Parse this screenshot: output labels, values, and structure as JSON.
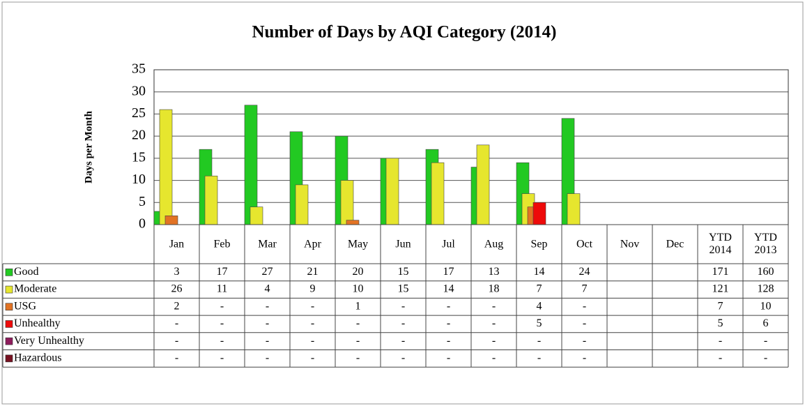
{
  "chart_data": {
    "type": "bar",
    "title": "Number of Days by AQI Category (2014)",
    "y_label": "Days per Month",
    "categories": [
      "Jan",
      "Feb",
      "Mar",
      "Apr",
      "May",
      "Jun",
      "Jul",
      "Aug",
      "Sep",
      "Oct",
      "Nov",
      "Dec"
    ],
    "ylim": [
      0,
      35
    ],
    "yticks": [
      0,
      5,
      10,
      15,
      20,
      25,
      30,
      35
    ],
    "grid": true,
    "series": [
      {
        "name": "Good",
        "color": "#22c922",
        "values": [
          3,
          17,
          27,
          21,
          20,
          15,
          17,
          13,
          14,
          24,
          null,
          null
        ],
        "value_labels": [
          "3",
          "17",
          "27",
          "21",
          "20",
          "15",
          "17",
          "13",
          "14",
          "24",
          null,
          null
        ]
      },
      {
        "name": "Moderate",
        "color": "#e6e62e",
        "values": [
          26,
          11,
          4,
          9,
          10,
          15,
          14,
          18,
          7,
          7,
          null,
          null
        ],
        "value_labels": [
          "26",
          "11",
          "4",
          "9",
          "10",
          "15",
          "14",
          "18",
          "7",
          "7",
          null,
          null
        ]
      },
      {
        "name": "USG",
        "color": "#e27324",
        "values": [
          2,
          0,
          0,
          0,
          1,
          0,
          0,
          0,
          4,
          0,
          null,
          null
        ],
        "value_labels": [
          "2",
          "-",
          "-",
          "-",
          "1",
          "-",
          "-",
          "-",
          "4",
          "-",
          null,
          null
        ]
      },
      {
        "name": "Unhealthy",
        "color": "#ee0a0a",
        "values": [
          0,
          0,
          0,
          0,
          0,
          0,
          0,
          0,
          5,
          0,
          null,
          null
        ],
        "value_labels": [
          "-",
          "-",
          "-",
          "-",
          "-",
          "-",
          "-",
          "-",
          "5",
          "-",
          null,
          null
        ]
      },
      {
        "name": "Very Unhealthy",
        "color": "#8e1c5c",
        "values": [
          0,
          0,
          0,
          0,
          0,
          0,
          0,
          0,
          0,
          0,
          null,
          null
        ],
        "value_labels": [
          "-",
          "-",
          "-",
          "-",
          "-",
          "-",
          "-",
          "-",
          "-",
          "-",
          null,
          null
        ]
      },
      {
        "name": "Hazardous",
        "color": "#781222",
        "values": [
          0,
          0,
          0,
          0,
          0,
          0,
          0,
          0,
          0,
          0,
          null,
          null
        ],
        "value_labels": [
          "-",
          "-",
          "-",
          "-",
          "-",
          "-",
          "-",
          "-",
          "-",
          "-",
          null,
          null
        ]
      }
    ]
  },
  "summary": {
    "columns": [
      "YTD 2014",
      "YTD 2013"
    ],
    "rows": [
      {
        "values": [
          171,
          160
        ],
        "labels": [
          "171",
          "160"
        ]
      },
      {
        "values": [
          121,
          128
        ],
        "labels": [
          "121",
          "128"
        ]
      },
      {
        "values": [
          7,
          10
        ],
        "labels": [
          "7",
          "10"
        ]
      },
      {
        "values": [
          5,
          6
        ],
        "labels": [
          "5",
          "6"
        ]
      },
      {
        "values": [
          0,
          0
        ],
        "labels": [
          "-",
          "-"
        ]
      },
      {
        "values": [
          0,
          0
        ],
        "labels": [
          "-",
          "-"
        ]
      }
    ]
  }
}
